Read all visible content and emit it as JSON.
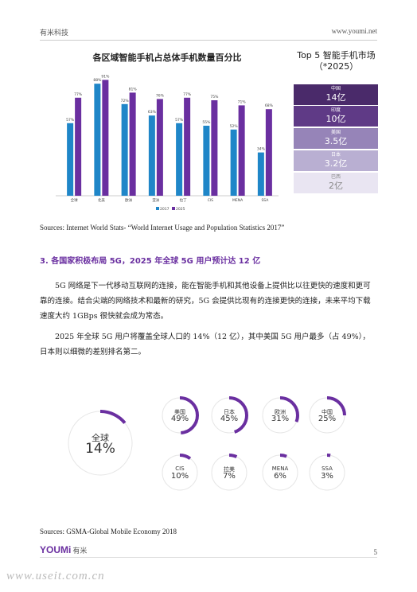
{
  "header": {
    "company": "有米科技",
    "website": "www.youmi.net"
  },
  "bar_chart_title": "各区域智能手机占总体手机数量百分比",
  "chart_data": {
    "type": "bar",
    "title": "各区域智能手机占总体手机数量百分比",
    "categories": [
      "全球",
      "北美",
      "欧洲",
      "亚洲",
      "拉丁",
      "CIS",
      "MENA",
      "SSA"
    ],
    "series": [
      {
        "name": "2017",
        "values": [
          57,
          88,
          72,
          63,
          57,
          55,
          52,
          34
        ],
        "color": "#1f86c8"
      },
      {
        "name": "2025",
        "values": [
          77,
          91,
          81,
          76,
          77,
          75,
          71,
          68
        ],
        "color": "#6a2fa0"
      }
    ],
    "value_suffix": "%",
    "ylim": [
      0,
      100
    ],
    "legend_position": "bottom",
    "grid": false
  },
  "top5": {
    "title_line1": "Top 5 智能手机市场",
    "title_line2": "（*2025）",
    "items": [
      {
        "country": "中国",
        "value": "14亿",
        "color": "#4a2a6a"
      },
      {
        "country": "印度",
        "value": "10亿",
        "color": "#5f3a86"
      },
      {
        "country": "美国",
        "value": "3.5亿",
        "color": "#9684b8"
      },
      {
        "country": "日本",
        "value": "3.2亿",
        "color": "#b9afd2"
      },
      {
        "country": "巴西",
        "value": "2亿",
        "color": "#e9e5f2",
        "text_color": "#888"
      }
    ]
  },
  "source1": "Sources: Internet World Stats- “World Internet Usage and Population Statistics 2017”",
  "section_title": "3. 各国家积极布局 5G，2025 年全球 5G 用户预计达 12 亿",
  "paragraph1": "5G 网络是下一代移动互联网的连接，能在智能手机和其他设备上提供比以往更快的速度和更可靠的连接。结合尖端的网络技术和最新的研究，5G 会提供比现有的连接更快的连接，未来平均下载速度大约 1GBps 很快就会成为常态。",
  "paragraph2": "2025 年全球 5G 用户将覆盖全球人口的 14%（12 亿），其中美国 5G 用户最多（占 49%），日本则以细微的差别排名第二。",
  "donuts": {
    "global": {
      "label": "全球",
      "value": "14%",
      "fraction": 0.14
    },
    "regions": [
      {
        "label": "美国",
        "value": "49%",
        "fraction": 0.49
      },
      {
        "label": "日本",
        "value": "45%",
        "fraction": 0.45
      },
      {
        "label": "欧洲",
        "value": "31%",
        "fraction": 0.31
      },
      {
        "label": "中国",
        "value": "25%",
        "fraction": 0.25
      },
      {
        "label": "CIS",
        "value": "10%",
        "fraction": 0.1
      },
      {
        "label": "拉美",
        "value": "7%",
        "fraction": 0.07
      },
      {
        "label": "MENA",
        "value": "6%",
        "fraction": 0.06
      },
      {
        "label": "SSA",
        "value": "3%",
        "fraction": 0.03
      }
    ],
    "accent_color": "#6a2fa0",
    "ring_color": "#e6e6e6"
  },
  "source2": "Sources: GSMA-Global Mobile Economy 2018",
  "footer": {
    "logo": "YOUMi",
    "logo_cn": "有米",
    "page_number": "5"
  },
  "watermark": "www.useit.com.cn"
}
